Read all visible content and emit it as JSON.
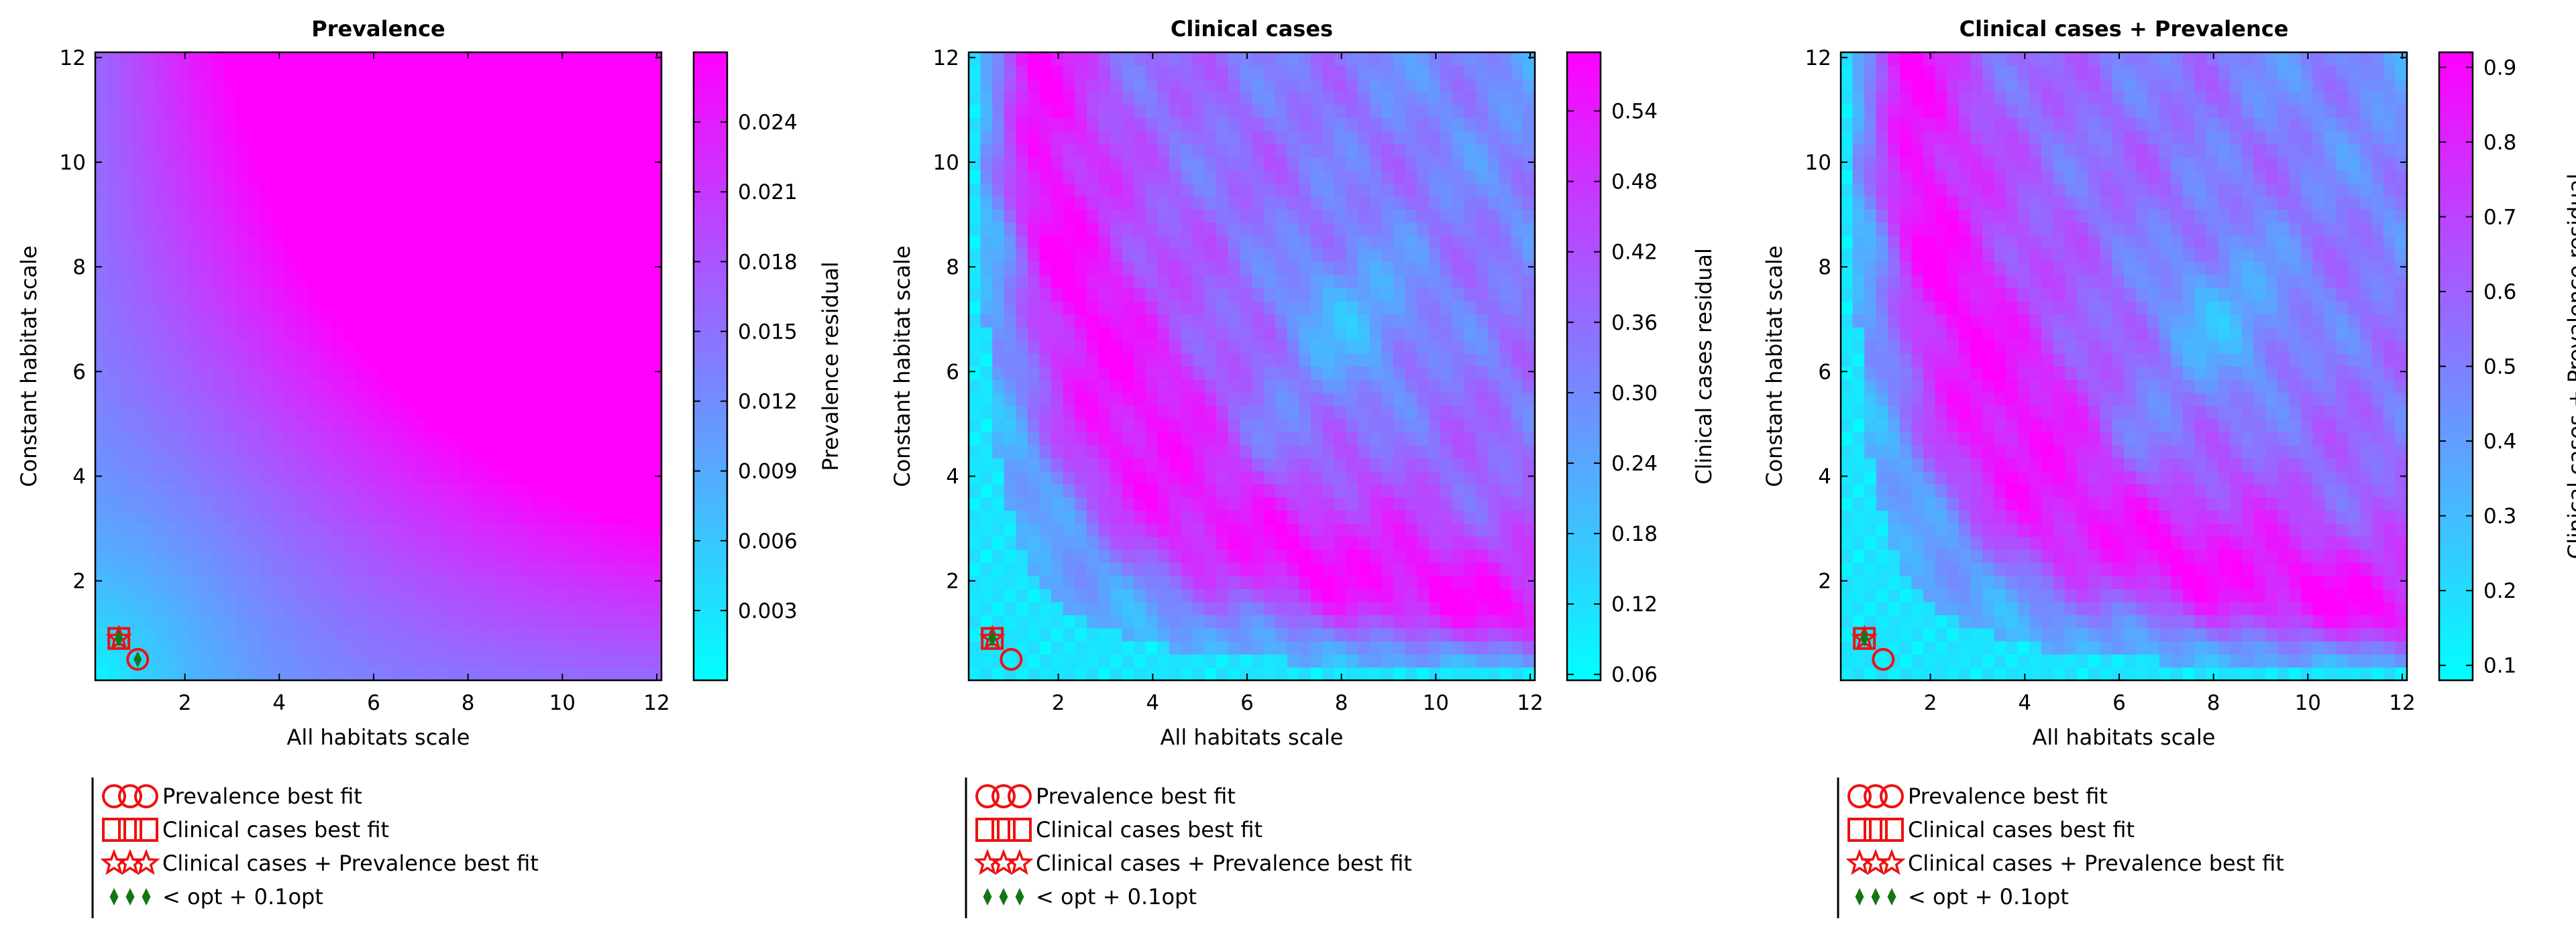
{
  "chart_data": [
    {
      "type": "heatmap",
      "title": "Prevalence",
      "xlabel": "All habitats scale",
      "ylabel": "Constant habitat scale",
      "colorbar_label": "Prevalence residual",
      "xlim": [
        0.1,
        12.1
      ],
      "ylim": [
        0.1,
        12.1
      ],
      "x_ticks": [
        2,
        4,
        6,
        8,
        10,
        12
      ],
      "y_ticks": [
        2,
        4,
        6,
        8,
        10,
        12
      ],
      "colorbar_range": [
        0.0,
        0.027
      ],
      "colorbar_ticks": [
        0.003,
        0.006,
        0.009,
        0.012,
        0.015,
        0.018,
        0.021,
        0.024
      ],
      "colorbar_tick_labels": [
        "0.003",
        "0.006",
        "0.009",
        "0.012",
        "0.015",
        "0.018",
        "0.021",
        "0.024"
      ],
      "colormap": [
        "#00ffff",
        "#ff00ff"
      ],
      "pattern": "smooth",
      "markers": [
        {
          "series": "Clinical cases best fit",
          "shape": "square",
          "x": 0.6,
          "y": 0.9
        },
        {
          "series": "Clinical cases + Prevalence best fit",
          "shape": "star",
          "x": 0.6,
          "y": 0.9
        },
        {
          "series": "Prevalence best fit",
          "shape": "circle",
          "x": 1.0,
          "y": 0.5
        },
        {
          "series": "< opt + 0.1opt",
          "shape": "diamond",
          "x": 0.6,
          "y": 0.9
        },
        {
          "series": "< opt + 0.1opt",
          "shape": "diamond",
          "x": 1.0,
          "y": 0.5
        }
      ],
      "legend": [
        "Prevalence best fit",
        "Clinical cases best fit",
        "Clinical cases + Prevalence best fit",
        "< opt + 0.1opt"
      ]
    },
    {
      "type": "heatmap",
      "title": "Clinical cases",
      "xlabel": "All habitats scale",
      "ylabel": "Constant habitat scale",
      "colorbar_label": "Clinical cases residual",
      "xlim": [
        0.1,
        12.1
      ],
      "ylim": [
        0.1,
        12.1
      ],
      "x_ticks": [
        2,
        4,
        6,
        8,
        10,
        12
      ],
      "y_ticks": [
        2,
        4,
        6,
        8,
        10,
        12
      ],
      "colorbar_range": [
        0.055,
        0.59
      ],
      "colorbar_ticks": [
        0.06,
        0.12,
        0.18,
        0.24,
        0.3,
        0.36,
        0.42,
        0.48,
        0.54
      ],
      "colorbar_tick_labels": [
        "0.06",
        "0.12",
        "0.18",
        "0.24",
        "0.30",
        "0.36",
        "0.42",
        "0.48",
        "0.54"
      ],
      "colormap": [
        "#00ffff",
        "#ff00ff"
      ],
      "pattern": "ridge",
      "markers": [
        {
          "series": "Clinical cases best fit",
          "shape": "square",
          "x": 0.6,
          "y": 0.9
        },
        {
          "series": "Clinical cases + Prevalence best fit",
          "shape": "star",
          "x": 0.6,
          "y": 0.9
        },
        {
          "series": "Prevalence best fit",
          "shape": "circle",
          "x": 1.0,
          "y": 0.5
        },
        {
          "series": "< opt + 0.1opt",
          "shape": "diamond",
          "x": 0.6,
          "y": 0.9
        }
      ],
      "legend": [
        "Prevalence best fit",
        "Clinical cases best fit",
        "Clinical cases + Prevalence best fit",
        "< opt + 0.1opt"
      ]
    },
    {
      "type": "heatmap",
      "title": "Clinical cases + Prevalence",
      "xlabel": "All habitats scale",
      "ylabel": "Constant habitat scale",
      "colorbar_label": "Clinical cases + Prevalence residual",
      "xlim": [
        0.1,
        12.1
      ],
      "ylim": [
        0.1,
        12.1
      ],
      "x_ticks": [
        2,
        4,
        6,
        8,
        10,
        12
      ],
      "y_ticks": [
        2,
        4,
        6,
        8,
        10,
        12
      ],
      "colorbar_range": [
        0.08,
        0.92
      ],
      "colorbar_ticks": [
        0.1,
        0.2,
        0.3,
        0.4,
        0.5,
        0.6,
        0.7,
        0.8,
        0.9
      ],
      "colorbar_tick_labels": [
        "0.1",
        "0.2",
        "0.3",
        "0.4",
        "0.5",
        "0.6",
        "0.7",
        "0.8",
        "0.9"
      ],
      "colormap": [
        "#00ffff",
        "#ff00ff"
      ],
      "pattern": "ridge",
      "markers": [
        {
          "series": "Clinical cases best fit",
          "shape": "square",
          "x": 0.6,
          "y": 0.9
        },
        {
          "series": "Clinical cases + Prevalence best fit",
          "shape": "star",
          "x": 0.6,
          "y": 0.9
        },
        {
          "series": "Prevalence best fit",
          "shape": "circle",
          "x": 1.0,
          "y": 0.5
        },
        {
          "series": "< opt + 0.1opt",
          "shape": "diamond",
          "x": 0.6,
          "y": 0.9
        }
      ],
      "legend": [
        "Prevalence best fit",
        "Clinical cases best fit",
        "Clinical cases + Prevalence best fit",
        "< opt + 0.1opt"
      ]
    }
  ],
  "colors": {
    "marker": "#ee1111",
    "diamond": "#117711",
    "axis": "#000000"
  }
}
